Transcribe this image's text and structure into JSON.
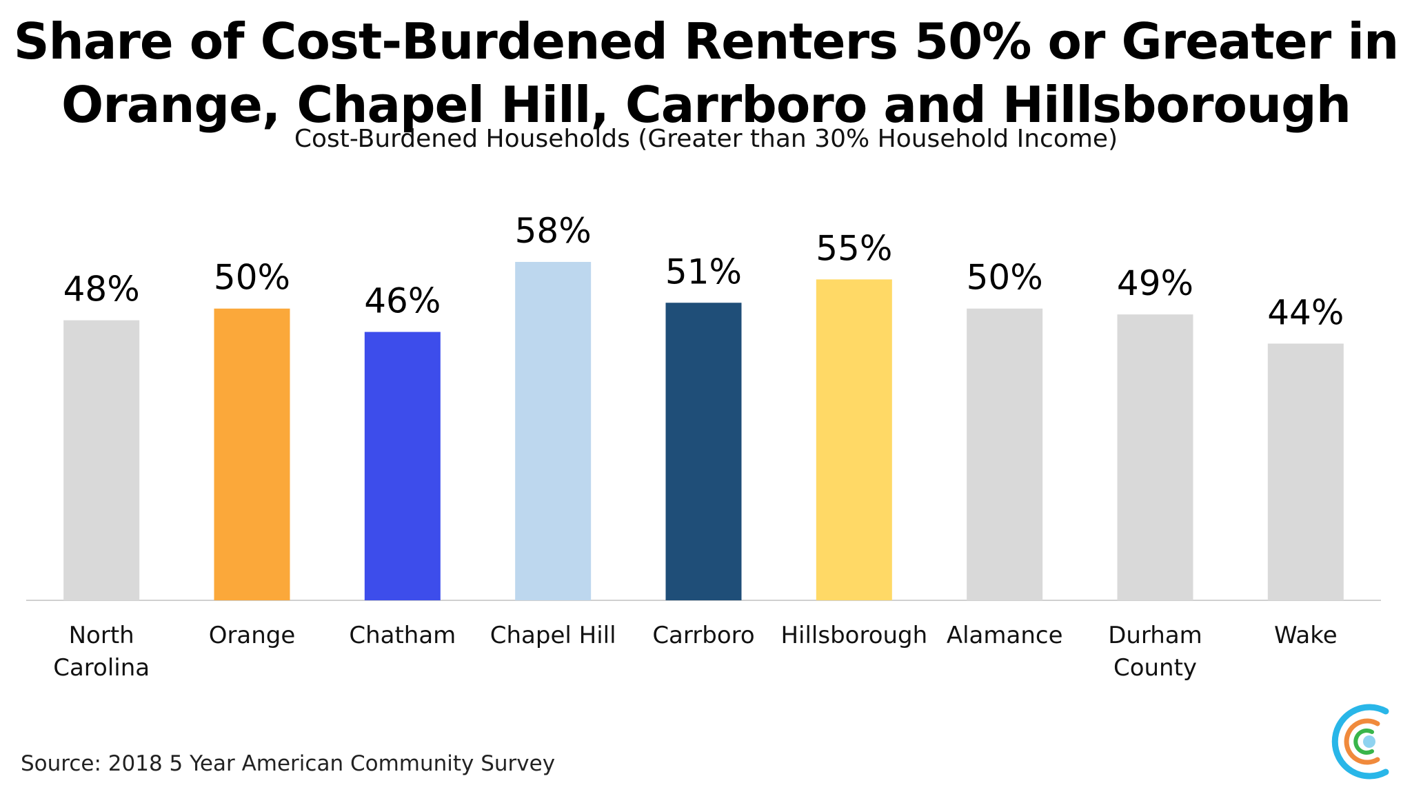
{
  "title": "Share of Cost-Burdened Renters 50% or Greater in\nOrange, Chapel Hill, Carrboro and Hillsborough",
  "subtitle": "Cost-Burdened Households (Greater than 30% Household Income)",
  "source": "Source: 2018 5 Year American Community Survey",
  "logo_icon": "concentric-c-logo-icon",
  "chart_data": {
    "type": "bar",
    "categories": [
      "North Carolina",
      "Orange",
      "Chatham",
      "Chapel Hill",
      "Carrboro",
      "Hillsborough",
      "Alamance",
      "Durham County",
      "Wake"
    ],
    "category_lines": [
      [
        "North",
        "Carolina"
      ],
      [
        "Orange"
      ],
      [
        "Chatham"
      ],
      [
        "Chapel Hill"
      ],
      [
        "Carrboro"
      ],
      [
        "Hillsborough"
      ],
      [
        "Alamance"
      ],
      [
        "Durham",
        "County"
      ],
      [
        "Wake"
      ]
    ],
    "values": [
      48,
      50,
      46,
      58,
      51,
      55,
      50,
      49,
      44
    ],
    "data_labels": [
      "48%",
      "50%",
      "46%",
      "58%",
      "51%",
      "55%",
      "50%",
      "49%",
      "44%"
    ],
    "colors": [
      "#d9d9d9",
      "#fba83a",
      "#3d4deb",
      "#bdd7ee",
      "#1f4e78",
      "#ffd966",
      "#d9d9d9",
      "#d9d9d9",
      "#d9d9d9"
    ],
    "unit": "%",
    "ylim": [
      0,
      58
    ],
    "grid": false,
    "legend": "none"
  }
}
